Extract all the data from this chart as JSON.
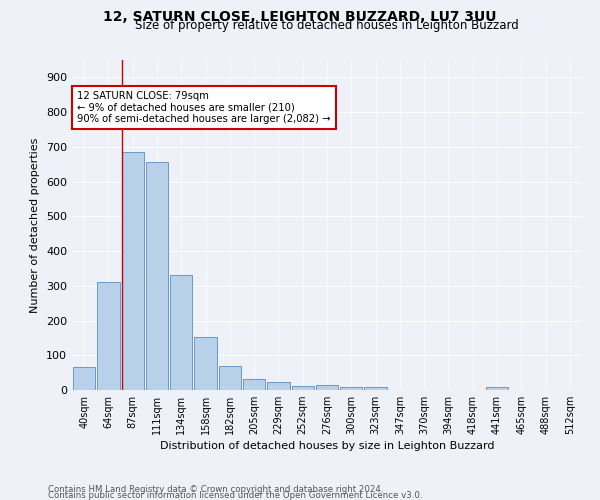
{
  "title": "12, SATURN CLOSE, LEIGHTON BUZZARD, LU7 3UU",
  "subtitle": "Size of property relative to detached houses in Leighton Buzzard",
  "xlabel": "Distribution of detached houses by size in Leighton Buzzard",
  "ylabel": "Number of detached properties",
  "footnote1": "Contains HM Land Registry data © Crown copyright and database right 2024.",
  "footnote2": "Contains public sector information licensed under the Open Government Licence v3.0.",
  "bar_labels": [
    "40sqm",
    "64sqm",
    "87sqm",
    "111sqm",
    "134sqm",
    "158sqm",
    "182sqm",
    "205sqm",
    "229sqm",
    "252sqm",
    "276sqm",
    "300sqm",
    "323sqm",
    "347sqm",
    "370sqm",
    "394sqm",
    "418sqm",
    "441sqm",
    "465sqm",
    "488sqm",
    "512sqm"
  ],
  "bar_values": [
    65,
    310,
    685,
    655,
    330,
    152,
    68,
    32,
    22,
    12,
    14,
    8,
    8,
    0,
    0,
    0,
    0,
    10,
    0,
    0,
    0
  ],
  "bar_color": "#b8d0e8",
  "bar_edge_color": "#6699cc",
  "background_color": "#eef2f8",
  "grid_color": "#ffffff",
  "vline_color": "#cc0000",
  "annotation_text": "12 SATURN CLOSE: 79sqm\n← 9% of detached houses are smaller (210)\n90% of semi-detached houses are larger (2,082) →",
  "annotation_box_color": "#ffffff",
  "annotation_box_edge_color": "#cc0000",
  "ylim": [
    0,
    950
  ],
  "yticks": [
    0,
    100,
    200,
    300,
    400,
    500,
    600,
    700,
    800,
    900
  ]
}
